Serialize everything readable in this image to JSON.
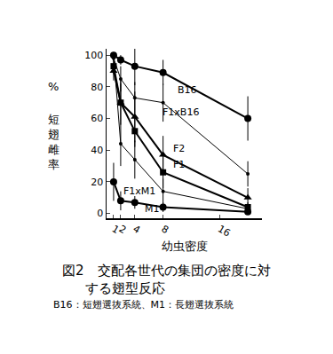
{
  "chart_data": {
    "type": "line",
    "xlabel": "幼虫密度",
    "ylabel": "短翅雌率",
    "yunit": "%",
    "caption": [
      "図2　交配各世代の集団の密度に対",
      "する翅型反応",
      "B16：短翅選抜系統、M1：長翅選抜系統"
    ],
    "x": [
      1,
      2,
      4,
      8,
      20
    ],
    "series": [
      {
        "name": "B16",
        "color": "#000000",
        "marker": "circle",
        "line_style": "solid",
        "values": [
          100,
          97,
          93,
          89,
          60
        ],
        "errors": [
          1,
          3,
          12,
          8,
          14
        ]
      },
      {
        "name": "F1xB16",
        "color": "#000000",
        "marker": "dot",
        "line_style": "thin",
        "values": [
          98,
          85,
          73,
          70,
          25
        ],
        "errors": [
          2,
          8,
          10,
          12,
          8
        ]
      },
      {
        "name": "F2",
        "color": "#000000",
        "marker": "triangle",
        "line_style": "solid",
        "values": [
          90,
          70,
          61,
          37,
          10
        ],
        "errors": [
          6,
          14,
          16,
          12,
          6
        ]
      },
      {
        "name": "F1",
        "color": "#000000",
        "marker": "square",
        "line_style": "solid",
        "values": [
          93,
          70,
          52,
          26,
          4
        ],
        "errors": [
          5,
          12,
          10,
          10,
          3
        ]
      },
      {
        "name": "F1xM1",
        "color": "#000000",
        "marker": "dot",
        "line_style": "thin",
        "values": [
          100,
          44,
          34,
          14,
          3
        ],
        "errors": [
          2,
          14,
          12,
          8,
          2
        ]
      },
      {
        "name": "M1",
        "color": "#000000",
        "marker": "circle",
        "line_style": "solid",
        "values": [
          20,
          8,
          7,
          4,
          1
        ],
        "errors": [
          12,
          6,
          4,
          3,
          1
        ]
      }
    ],
    "xlim": [
      0,
      22
    ],
    "ylim": [
      -3,
      104
    ],
    "xticks": [
      1,
      2,
      4,
      8,
      16
    ],
    "yticks": [
      0,
      20,
      40,
      60,
      80,
      100
    ],
    "grid": false,
    "legend": "none"
  }
}
